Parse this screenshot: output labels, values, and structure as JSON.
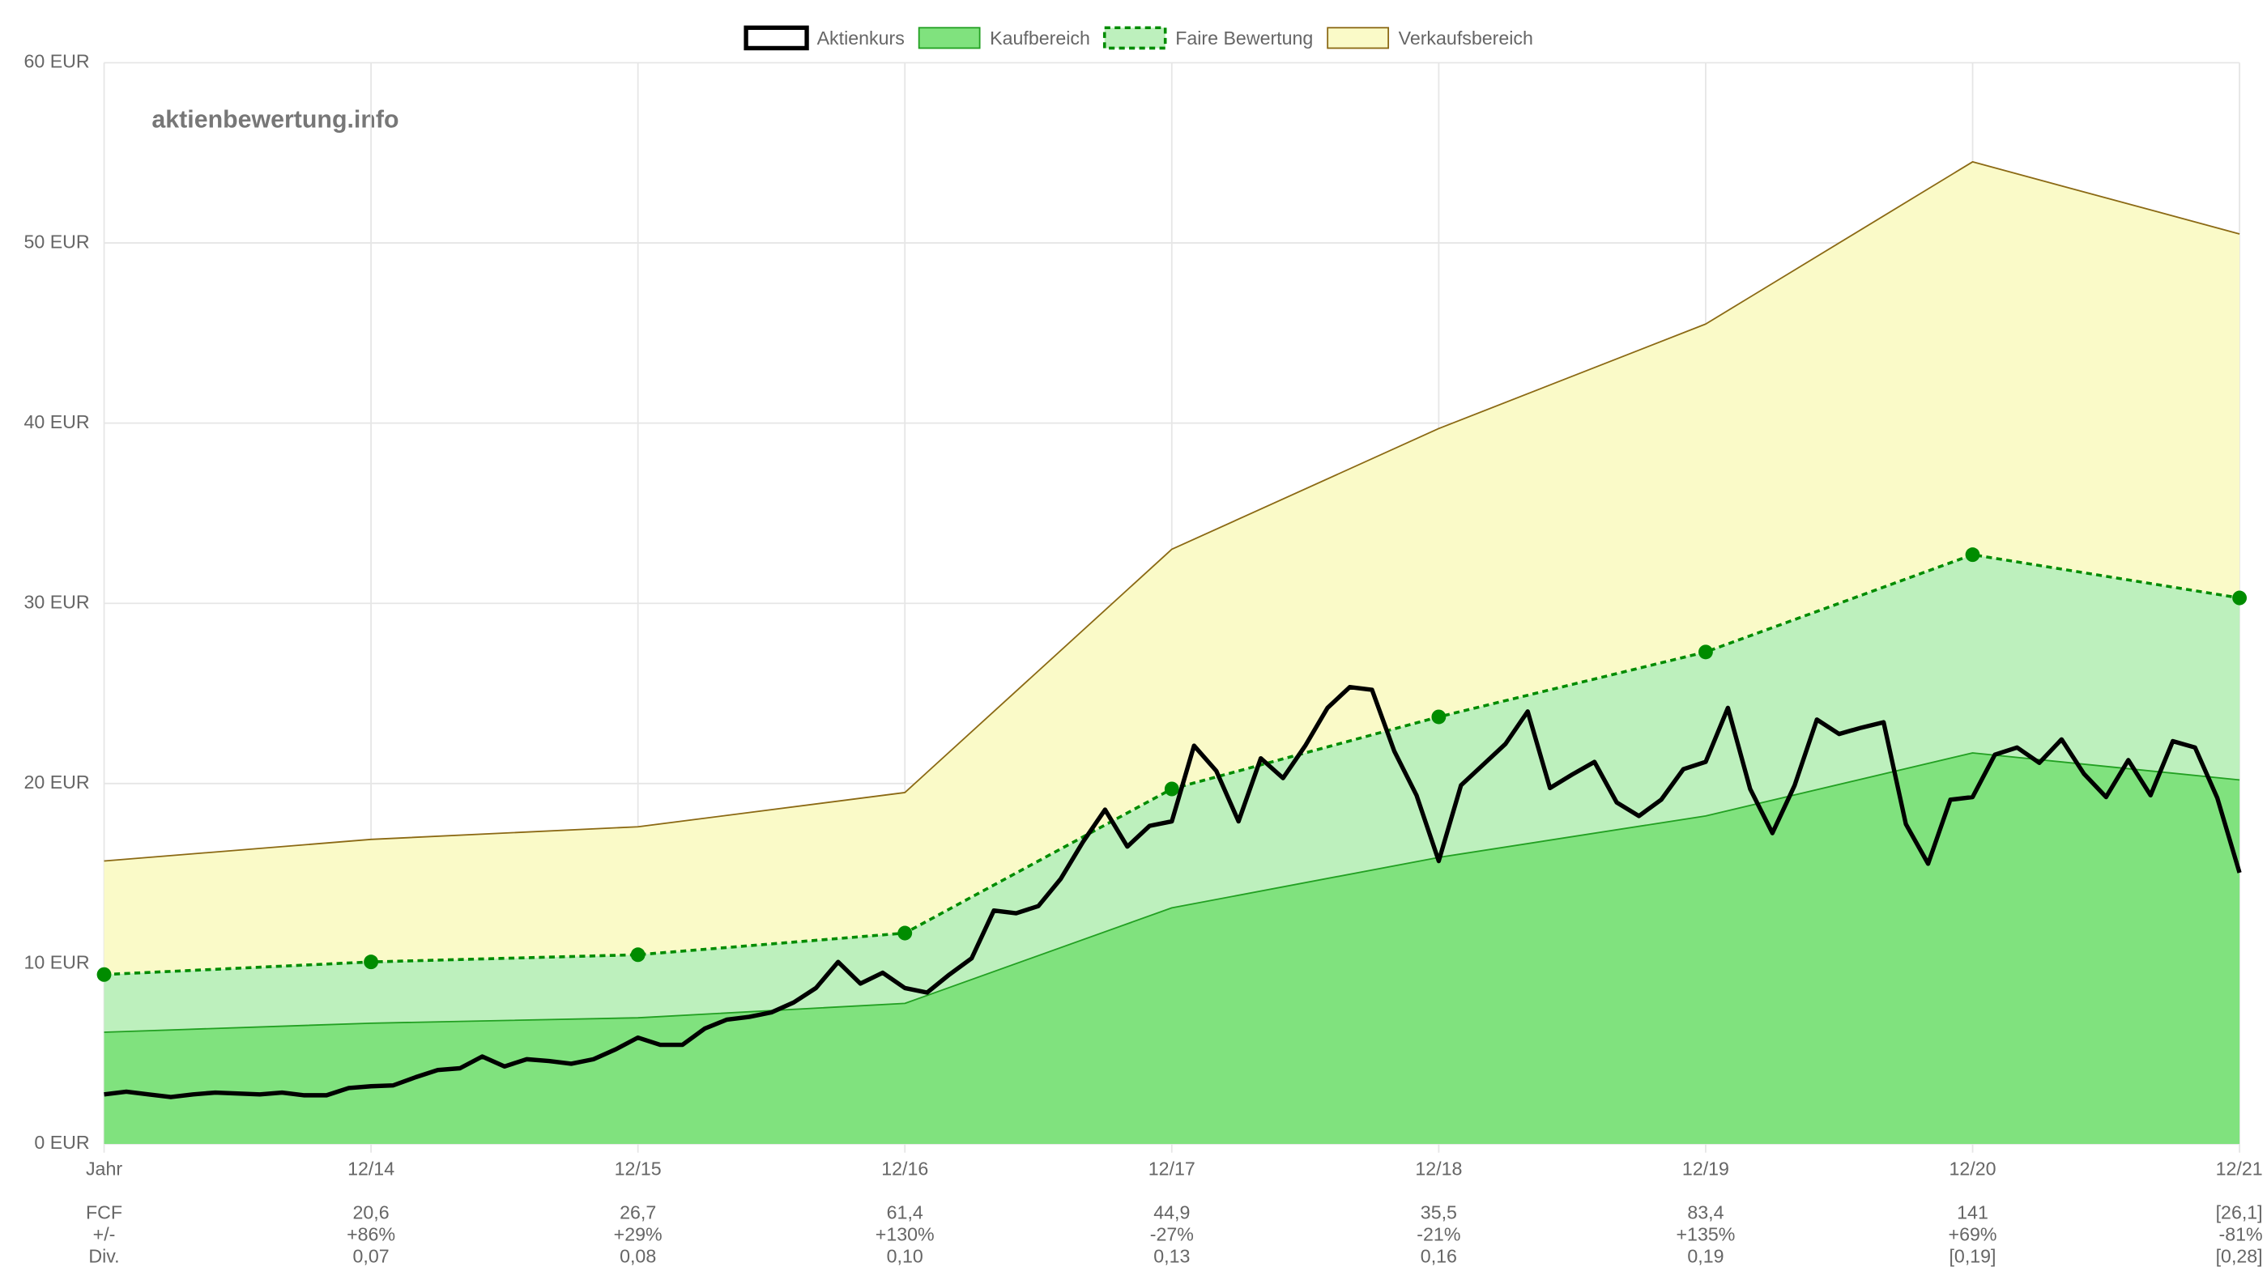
{
  "chart_data": {
    "type": "line",
    "watermark": "aktienbewertung.info",
    "legend": "top",
    "grid": true,
    "xlim": [
      0,
      96
    ],
    "xticks": [
      {
        "value": 0,
        "label": "Jahr"
      },
      {
        "value": 12,
        "label": "12/14"
      },
      {
        "value": 24,
        "label": "12/15"
      },
      {
        "value": 36,
        "label": "12/16"
      },
      {
        "value": 48,
        "label": "12/17"
      },
      {
        "value": 60,
        "label": "12/18"
      },
      {
        "value": 72,
        "label": "12/19"
      },
      {
        "value": 84,
        "label": "12/20"
      },
      {
        "value": 96,
        "label": "12/21"
      }
    ],
    "ylim": [
      0,
      60
    ],
    "yticks": [
      {
        "value": 0,
        "label": "0 EUR"
      },
      {
        "value": 10,
        "label": "10 EUR"
      },
      {
        "value": 20,
        "label": "20 EUR"
      },
      {
        "value": 30,
        "label": "30 EUR"
      },
      {
        "value": 40,
        "label": "40 EUR"
      },
      {
        "value": 50,
        "label": "50 EUR"
      },
      {
        "value": 60,
        "label": "60 EUR"
      }
    ],
    "series": [
      {
        "name": "Aktienkurs",
        "color": "#000000",
        "width": 3,
        "x": [
          0,
          1,
          2,
          3,
          4,
          5,
          6,
          7,
          8,
          9,
          10,
          11,
          12,
          13,
          14,
          15,
          16,
          17,
          18,
          19,
          20,
          21,
          22,
          23,
          24,
          25,
          26,
          27,
          28,
          29,
          30,
          31,
          32,
          33,
          34,
          35,
          36,
          37,
          38,
          39,
          40,
          41,
          42,
          43,
          44,
          45,
          46,
          47,
          48,
          49,
          50,
          51,
          52,
          53,
          54,
          55,
          56,
          57,
          58,
          59,
          60,
          61,
          62,
          63,
          64,
          65,
          66,
          67,
          68,
          69,
          70,
          71,
          72,
          73,
          74,
          75,
          76,
          77,
          78,
          79,
          80,
          81,
          82,
          83,
          84,
          85,
          86,
          87,
          88,
          89,
          90,
          91,
          92,
          93,
          94,
          95,
          96
        ],
        "values": [
          2.75,
          2.9,
          2.75,
          2.6,
          2.75,
          2.85,
          2.8,
          2.75,
          2.85,
          2.7,
          2.7,
          3.1,
          3.2,
          3.25,
          3.7,
          4.1,
          4.2,
          4.85,
          4.3,
          4.7,
          4.6,
          4.45,
          4.7,
          5.25,
          5.9,
          5.5,
          5.5,
          6.4,
          6.9,
          7.05,
          7.3,
          7.85,
          8.65,
          10.1,
          8.9,
          9.5,
          8.65,
          8.4,
          9.4,
          10.3,
          12.95,
          12.8,
          13.2,
          14.7,
          16.75,
          18.55,
          16.5,
          17.65,
          17.9,
          22.1,
          20.7,
          17.9,
          21.4,
          20.3,
          22.1,
          24.2,
          25.35,
          25.2,
          21.8,
          19.35,
          15.7,
          19.9,
          21.05,
          22.2,
          24.0,
          19.75,
          20.5,
          21.2,
          18.95,
          18.2,
          19.1,
          20.8,
          21.2,
          24.2,
          19.7,
          17.25,
          19.9,
          23.55,
          22.75,
          23.1,
          23.4,
          17.75,
          15.55,
          19.1,
          19.25,
          21.6,
          22.0,
          21.15,
          22.45,
          20.55,
          19.25,
          21.3,
          19.35,
          22.35,
          22.0,
          19.2,
          15.05
        ]
      },
      {
        "name": "Kaufbereich",
        "color": "#22a022",
        "fill_color": "#80e27e",
        "fill": "origin",
        "width": 1,
        "x": [
          0,
          12,
          24,
          36,
          48,
          60,
          72,
          84,
          96
        ],
        "values": [
          6.2,
          6.7,
          7.0,
          7.8,
          13.1,
          15.9,
          18.2,
          21.7,
          20.2
        ]
      },
      {
        "name": "Faire Bewertung",
        "color": "#008c00",
        "fill_color": "#bdf0bd",
        "fill": "previous",
        "dashed": true,
        "points": true,
        "width": 2,
        "x": [
          0,
          12,
          24,
          36,
          48,
          60,
          72,
          84,
          96
        ],
        "values": [
          9.4,
          10.1,
          10.5,
          11.7,
          19.7,
          23.7,
          27.3,
          32.7,
          30.3
        ]
      },
      {
        "name": "Verkaufsbereich",
        "color": "#8b6914",
        "fill_color": "#fafac8",
        "fill": "previous",
        "width": 1,
        "x": [
          0,
          12,
          24,
          36,
          48,
          60,
          72,
          84,
          96
        ],
        "values": [
          15.7,
          16.9,
          17.6,
          19.5,
          33.0,
          39.7,
          45.5,
          54.5,
          50.5
        ]
      }
    ],
    "table": {
      "rows": [
        {
          "label": "FCF",
          "values": [
            "20,6",
            "26,7",
            "61,4",
            "44,9",
            "35,5",
            "83,4",
            "141",
            "[26,1]"
          ]
        },
        {
          "label": "+/-",
          "values": [
            "+86%",
            "+29%",
            "+130%",
            "-27%",
            "-21%",
            "+135%",
            "+69%",
            "-81%"
          ]
        },
        {
          "label": "Div.",
          "values": [
            "0,07",
            "0,08",
            "0,10",
            "0,13",
            "0,16",
            "0,19",
            "[0,19]",
            "[0,28]"
          ]
        }
      ]
    }
  }
}
